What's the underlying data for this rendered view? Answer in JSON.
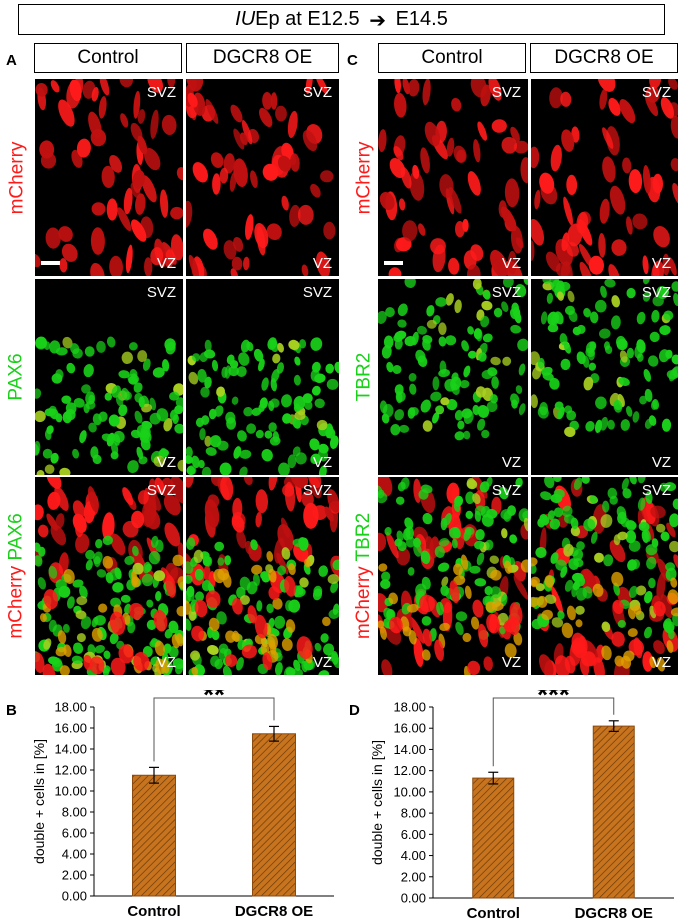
{
  "figure_title": {
    "italic": "IU",
    "rest": "Ep at E12.5",
    "arrow": "➔",
    "end": "E14.5"
  },
  "panels": {
    "a": {
      "letter": "A",
      "col_control": "Control",
      "col_oe": "DGCR8 OE",
      "row1_label": "mCherry",
      "row2_label": "PAX6",
      "row3_label_top": "PAX6",
      "row3_label_bottom": "mCherry"
    },
    "c": {
      "letter": "C",
      "col_control": "Control",
      "col_oe": "DGCR8 OE",
      "row1_label": "mCherry",
      "row2_label": "TBR2",
      "row3_label_top": "TBR2",
      "row3_label_bottom": "mCherry"
    },
    "b": {
      "letter": "B"
    },
    "d": {
      "letter": "D"
    }
  },
  "zone_labels": {
    "top": "SVZ",
    "bottom": "VZ"
  },
  "colors": {
    "mcherry": "#ff1a1a",
    "marker": "#19d119",
    "bar_fill": "#c8741e",
    "bar_hatch": "#6a3a0a"
  },
  "chart_data": [
    {
      "type": "bar",
      "panel": "B",
      "categories": [
        "Control",
        "DGCR8 OE"
      ],
      "values": [
        11.5,
        15.45
      ],
      "errors": [
        0.75,
        0.7
      ],
      "ylabel": "double + cells in [%]",
      "ylim": [
        0,
        18
      ],
      "yticks": [
        "0.00",
        "2.00",
        "4.00",
        "6.00",
        "8.00",
        "10.00",
        "12.00",
        "14.00",
        "16.00",
        "18.00"
      ],
      "significance": "**"
    },
    {
      "type": "bar",
      "panel": "D",
      "categories": [
        "Control",
        "DGCR8 OE"
      ],
      "values": [
        11.3,
        16.2
      ],
      "errors": [
        0.55,
        0.5
      ],
      "ylabel": "double + cells in [%]",
      "ylim": [
        0,
        18
      ],
      "yticks": [
        "0.00",
        "2.00",
        "4.00",
        "6.00",
        "8.00",
        "10.00",
        "12.00",
        "14.00",
        "16.00",
        "18.00"
      ],
      "significance": "***"
    }
  ]
}
